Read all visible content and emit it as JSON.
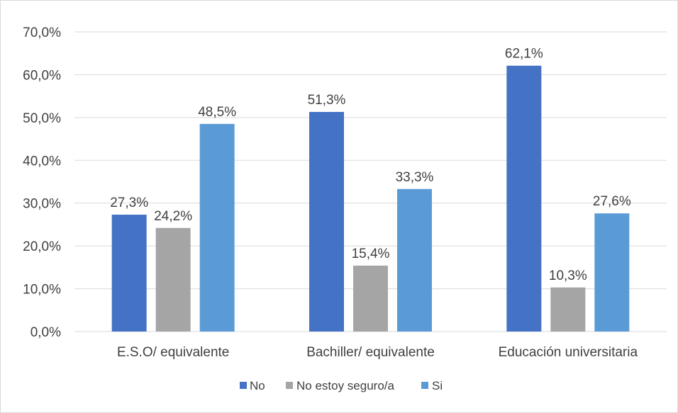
{
  "chart_data": {
    "type": "bar",
    "title": "",
    "xlabel": "",
    "ylabel": "",
    "categories": [
      "E.S.O/ equivalente",
      "Bachiller/ equivalente",
      "Educación universitaria"
    ],
    "series": [
      {
        "name": "No",
        "color": "#4472C4",
        "values": [
          27.3,
          51.3,
          62.1
        ],
        "labels": [
          "27,3%",
          "51,3%",
          "62,1%"
        ]
      },
      {
        "name": "No estoy seguro/a",
        "color": "#A5A5A5",
        "values": [
          24.2,
          15.4,
          10.3
        ],
        "labels": [
          "24,2%",
          "15,4%",
          "10,3%"
        ]
      },
      {
        "name": "Si",
        "color": "#5B9BD5",
        "values": [
          48.5,
          33.3,
          27.6
        ],
        "labels": [
          "48,5%",
          "33,3%",
          "27,6%"
        ]
      }
    ],
    "ylim": [
      0,
      70
    ],
    "yticks": [
      0,
      10,
      20,
      30,
      40,
      50,
      60,
      70
    ],
    "ytick_labels": [
      "0,0%",
      "10,0%",
      "20,0%",
      "30,0%",
      "40,0%",
      "50,0%",
      "60,0%",
      "70,0%"
    ],
    "grid": true,
    "legend_position": "bottom"
  }
}
